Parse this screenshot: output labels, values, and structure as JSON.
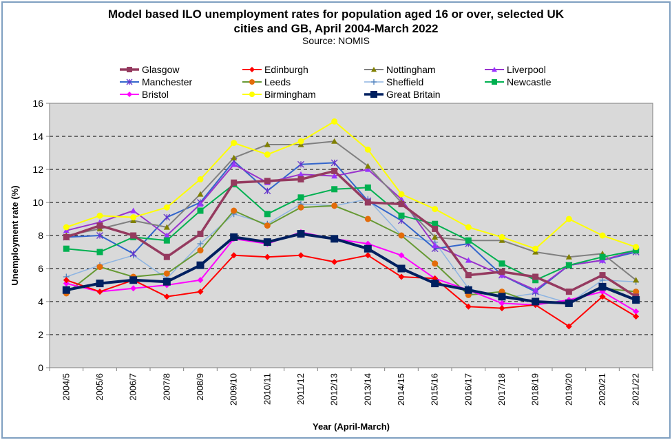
{
  "chart_data": {
    "type": "line",
    "title_line1": "Model based ILO unemployment rates for population aged 16 or over, selected UK",
    "title_line2": "cities and GB, April 2004-March 2022",
    "subtitle": "Source: NOMIS",
    "xlabel": "Year (April-March)",
    "ylabel": "Unemployment rate (%)",
    "ylim": [
      0,
      16
    ],
    "yticks": [
      0,
      2,
      4,
      6,
      8,
      10,
      12,
      14,
      16
    ],
    "ytick_labels": [
      "0",
      "2",
      "4",
      "6",
      "8",
      "10",
      "12",
      "14",
      "16"
    ],
    "grid": "horizontal dashed",
    "plot_background": "#d9d9d9",
    "categories": [
      "2004/5",
      "2005/6",
      "2006/7",
      "2007/8",
      "2008/9",
      "2009/10",
      "2010/11",
      "2011/12",
      "2012/13",
      "2013/14",
      "2014/15",
      "2015/16",
      "2016/17",
      "2017/18",
      "2018/19",
      "2019/20",
      "2020/21",
      "2021/22"
    ],
    "series": [
      {
        "name": "Glasgow",
        "color": "#953a5f",
        "marker": "square",
        "width": 3.5,
        "values": [
          7.9,
          8.6,
          8.0,
          6.7,
          8.1,
          11.2,
          11.3,
          11.4,
          11.9,
          10.0,
          9.9,
          8.4,
          5.6,
          5.8,
          5.5,
          4.6,
          5.6,
          4.3
        ]
      },
      {
        "name": "Edinburgh",
        "color": "#ff0000",
        "marker": "diamond",
        "width": 2,
        "values": [
          5.3,
          4.6,
          5.3,
          4.3,
          4.6,
          6.8,
          6.7,
          6.8,
          6.4,
          6.8,
          5.5,
          5.4,
          3.7,
          3.6,
          3.8,
          2.5,
          4.3,
          3.1
        ]
      },
      {
        "name": "Nottingham",
        "color": "#808080",
        "marker": "triangle",
        "markerColor": "#808000",
        "width": 2,
        "values": [
          8.0,
          8.4,
          8.9,
          8.5,
          10.5,
          12.7,
          13.5,
          13.5,
          13.7,
          12.2,
          10.0,
          7.9,
          7.7,
          7.7,
          7.0,
          6.7,
          6.9,
          5.3
        ]
      },
      {
        "name": "Liverpool",
        "color": "#9933cc",
        "marker": "triangle",
        "markerColor": "#9933ff",
        "width": 2,
        "values": [
          8.3,
          8.8,
          9.5,
          8.0,
          9.9,
          12.3,
          11.2,
          11.7,
          11.6,
          12.0,
          10.2,
          7.4,
          6.5,
          5.6,
          4.7,
          6.2,
          6.5,
          7.1
        ]
      },
      {
        "name": "Manchester",
        "color": "#3366cc",
        "marker": "star",
        "markerColor": "#6633cc",
        "width": 2,
        "values": [
          7.9,
          8.0,
          6.9,
          9.1,
          10.0,
          12.5,
          10.7,
          12.3,
          12.4,
          10.1,
          8.9,
          7.2,
          7.5,
          5.6,
          4.6,
          6.2,
          6.5,
          7.0
        ]
      },
      {
        "name": "Leeds",
        "color": "#669933",
        "marker": "circle",
        "markerColor": "#e36c0a",
        "width": 2,
        "values": [
          4.5,
          6.1,
          5.5,
          5.7,
          7.1,
          9.5,
          8.6,
          9.7,
          9.8,
          9.0,
          8.0,
          6.3,
          4.4,
          4.6,
          3.9,
          4.0,
          4.8,
          4.6
        ]
      },
      {
        "name": "Sheffield",
        "color": "#8db4e2",
        "marker": "plus",
        "markerColor": "#4f81bd",
        "width": 1.5,
        "values": [
          5.5,
          6.2,
          6.8,
          5.4,
          7.5,
          9.3,
          8.7,
          9.9,
          9.8,
          10.2,
          8.0,
          7.6,
          4.8,
          4.2,
          4.5,
          3.9,
          5.3,
          5.2
        ]
      },
      {
        "name": "Newcastle",
        "color": "#00b050",
        "marker": "square",
        "markerColor": "#00b050",
        "width": 2,
        "values": [
          7.2,
          7.0,
          7.9,
          7.7,
          9.5,
          11.1,
          9.3,
          10.3,
          10.8,
          10.9,
          9.2,
          8.7,
          7.7,
          6.3,
          5.3,
          6.2,
          6.7,
          7.1
        ]
      },
      {
        "name": "Bristol",
        "color": "#ff00ff",
        "marker": "diamond",
        "markerColor": "#ff00ff",
        "width": 2,
        "values": [
          5.1,
          4.6,
          4.8,
          5.0,
          5.3,
          7.8,
          7.5,
          8.2,
          7.8,
          7.5,
          6.8,
          5.4,
          4.7,
          3.9,
          3.8,
          4.1,
          4.6,
          3.4
        ]
      },
      {
        "name": "Birmingham",
        "color": "#ffff00",
        "marker": "circle",
        "markerColor": "#ffff00",
        "width": 2,
        "values": [
          8.5,
          9.2,
          9.1,
          9.7,
          11.4,
          13.6,
          12.9,
          13.7,
          14.9,
          13.2,
          10.5,
          9.6,
          8.5,
          7.9,
          7.2,
          9.0,
          8.0,
          7.3
        ]
      },
      {
        "name": "Great Britain",
        "color": "#002060",
        "marker": "square",
        "markerColor": "#002060",
        "width": 4,
        "values": [
          4.7,
          5.1,
          5.3,
          5.2,
          6.2,
          7.9,
          7.6,
          8.1,
          7.8,
          7.2,
          6.0,
          5.1,
          4.7,
          4.3,
          4.0,
          3.9,
          4.9,
          4.1
        ]
      }
    ],
    "legend_order": [
      "Glasgow",
      "Edinburgh",
      "Nottingham",
      "Liverpool",
      "Manchester",
      "Leeds",
      "Sheffield",
      "Newcastle",
      "Bristol",
      "Birmingham",
      "Great Britain"
    ],
    "legend_placement": "top, four columns"
  }
}
